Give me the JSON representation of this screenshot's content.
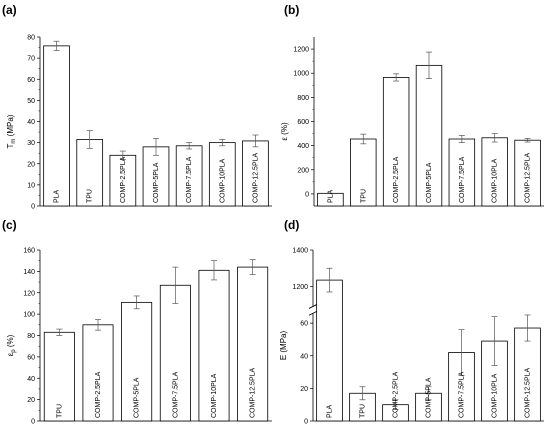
{
  "figure": {
    "panel_letters": [
      "(a)",
      "(b)",
      "(c)",
      "(d)"
    ]
  },
  "chart_data": [
    {
      "type": "bar",
      "panel": "(a)",
      "title": "",
      "xlabel": "",
      "ylabel": "T",
      "ylabel_sub": "m",
      "ylabel_tail": " (MPa)",
      "ylim": [
        0,
        80
      ],
      "yticks": [
        0,
        10,
        20,
        30,
        40,
        50,
        60,
        70,
        80
      ],
      "categories": [
        "PLA",
        "TPU",
        "COMP-2.5PLA",
        "COMP-5PLA",
        "COMP-7.5PLA",
        "COMP-10PLA",
        "COMP-12.5PLA"
      ],
      "values": [
        75.8,
        31.5,
        24,
        28,
        28.5,
        30,
        30.8
      ],
      "errors": [
        2.2,
        4.2,
        2,
        4,
        1.5,
        1.5,
        2.8
      ],
      "grid": false
    },
    {
      "type": "bar",
      "panel": "(b)",
      "title": "",
      "xlabel": "",
      "ylabel": "ε (%)",
      "ylim": [
        -100,
        1300
      ],
      "yticks": [
        0,
        200,
        400,
        600,
        800,
        1000,
        1200
      ],
      "categories": [
        "PLA",
        "TPU",
        "COMP-2.5PLA",
        "COMP-5PLA",
        "COMP-7.5PLA",
        "COMP-10PLA",
        "COMP-12.5PLA"
      ],
      "values": [
        5,
        455,
        965,
        1065,
        455,
        465,
        445
      ],
      "errors": [
        0,
        40,
        30,
        110,
        30,
        35,
        15
      ],
      "grid": false
    },
    {
      "type": "bar",
      "panel": "(c)",
      "title": "",
      "xlabel": "",
      "ylabel": "ε",
      "ylabel_sub": "p",
      "ylabel_tail": " (%)",
      "ylim": [
        0,
        160
      ],
      "yticks": [
        0,
        20,
        40,
        60,
        80,
        100,
        120,
        140,
        160
      ],
      "categories": [
        "TPU",
        "COMP-2.5PLA",
        "COMP-5PLA",
        "COMP-7.5PLA",
        "COMP-10PLA",
        "COMP-12.5PLA"
      ],
      "values": [
        83,
        90,
        111,
        127,
        141,
        144
      ],
      "errors": [
        3,
        5,
        6,
        17,
        9,
        7
      ],
      "grid": false
    },
    {
      "type": "bar",
      "panel": "(d)",
      "title": "",
      "xlabel": "",
      "ylabel": "E (MPa)",
      "axis_break": [
        65,
        1100
      ],
      "ylim": [
        0,
        1400
      ],
      "yticks": [
        0,
        20,
        40,
        60,
        1200,
        1400
      ],
      "categories": [
        "PLA",
        "TPU",
        "COMP-2.5PLA",
        "COMP-5PLA",
        "COMP-7.5PLA",
        "COMP-10PLA",
        "COMP-12.5PLA"
      ],
      "values": [
        1235,
        17,
        10,
        17,
        42,
        49,
        57
      ],
      "errors": [
        65,
        4,
        3,
        4,
        14,
        15,
        8
      ],
      "grid": false
    }
  ]
}
